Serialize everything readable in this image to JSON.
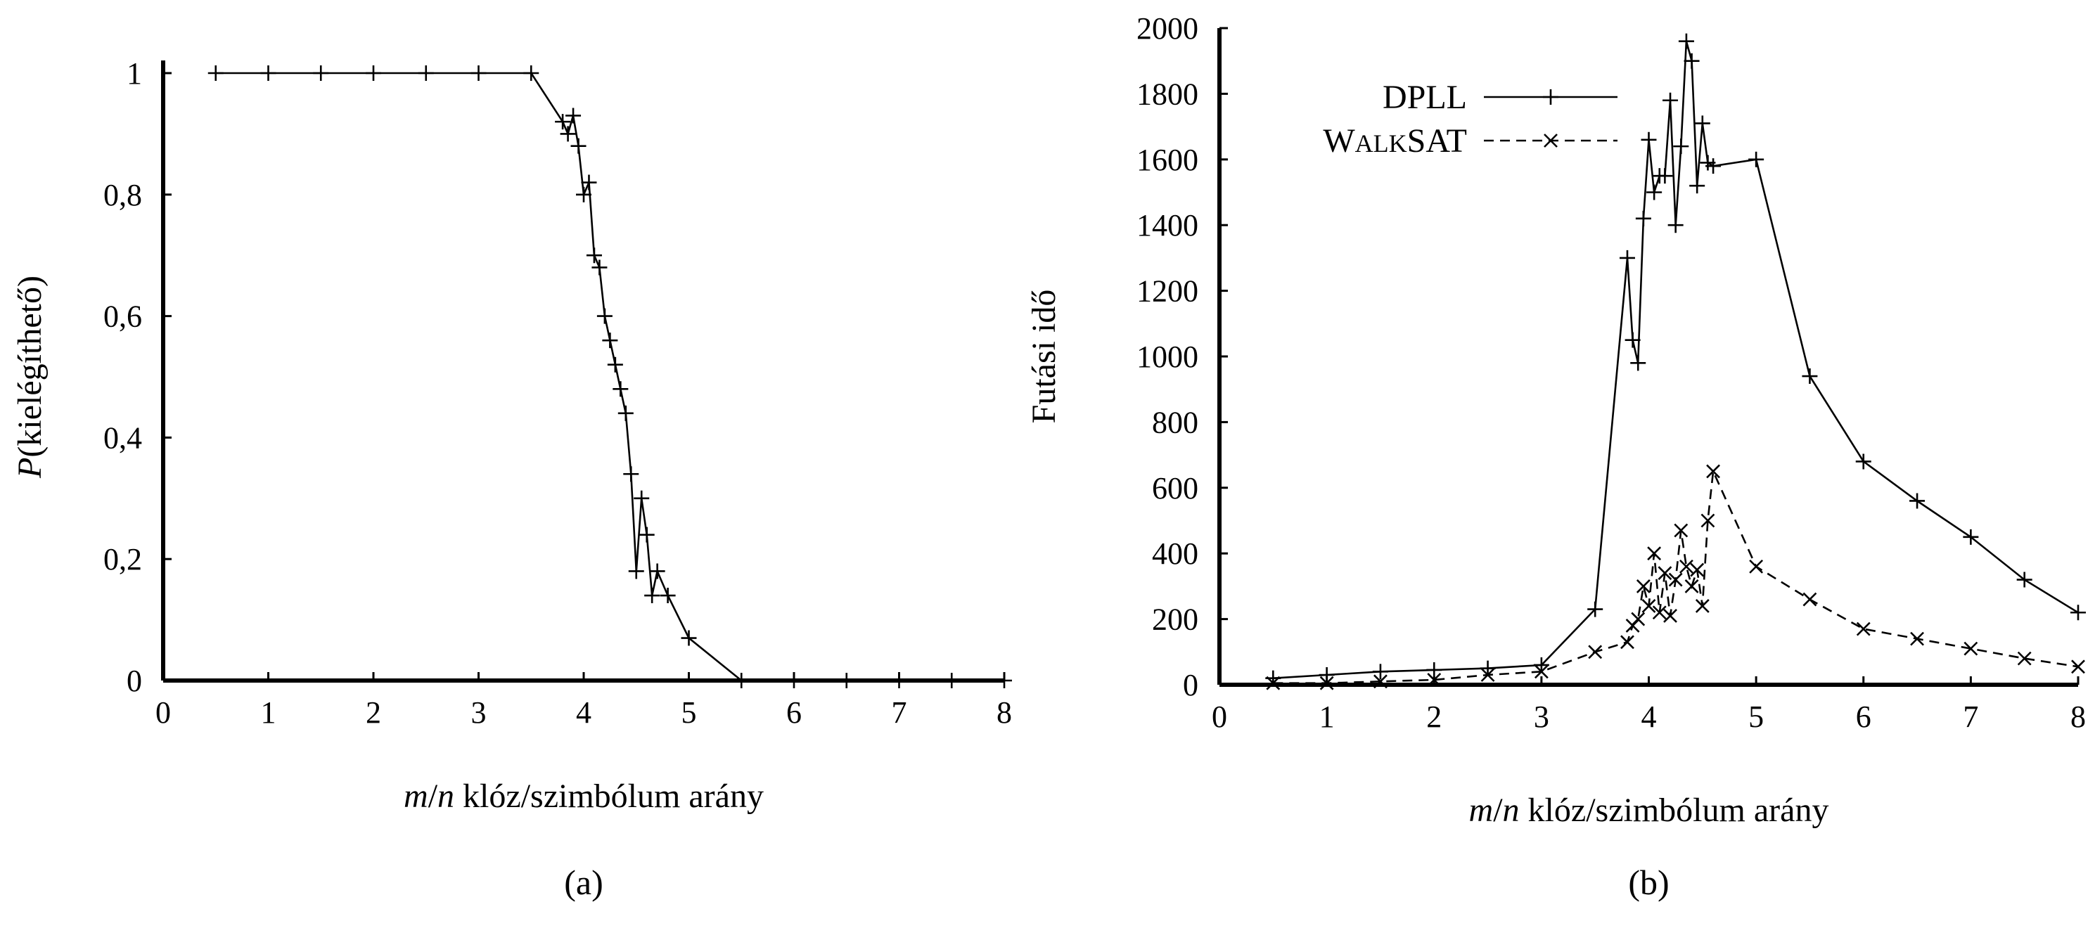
{
  "chart_data": [
    {
      "panel": "a",
      "type": "line",
      "caption": "(a)",
      "xlabel_italic": "m",
      "xlabel_sep": "/",
      "xlabel_italic2": "n",
      "xlabel_rest": " klóz/szimbólum arány",
      "ylabel_italic": "P",
      "ylabel_rest": "(kielégíthető)",
      "xlim": [
        0,
        8
      ],
      "ylim": [
        0,
        1
      ],
      "xticks": [
        "0",
        "1",
        "2",
        "3",
        "4",
        "5",
        "6",
        "7",
        "8"
      ],
      "yticks": [
        "0",
        "0,2",
        "0,4",
        "0,6",
        "0,8",
        "1"
      ],
      "reference_line_y": 0,
      "series": [
        {
          "marker": "plus",
          "line": "solid",
          "x": [
            0.5,
            1,
            1.5,
            2,
            2.5,
            3,
            3.5,
            3.8,
            3.85,
            3.9,
            3.95,
            4.0,
            4.05,
            4.1,
            4.15,
            4.2,
            4.25,
            4.3,
            4.35,
            4.4,
            4.45,
            4.5,
            4.55,
            4.6,
            4.65,
            4.7,
            4.8,
            5.0,
            5.5,
            6,
            6.5,
            7,
            7.5,
            8
          ],
          "y": [
            1,
            1,
            1,
            1,
            1,
            1,
            1,
            0.92,
            0.9,
            0.93,
            0.88,
            0.8,
            0.82,
            0.7,
            0.68,
            0.6,
            0.56,
            0.52,
            0.48,
            0.44,
            0.34,
            0.18,
            0.3,
            0.24,
            0.14,
            0.18,
            0.14,
            0.07,
            0,
            0,
            0,
            0,
            0,
            0
          ]
        }
      ]
    },
    {
      "panel": "b",
      "type": "line",
      "caption": "(b)",
      "xlabel_italic": "m",
      "xlabel_sep": "/",
      "xlabel_italic2": "n",
      "xlabel_rest": " klóz/szimbólum arány",
      "ylabel": "Futási idő",
      "xlim": [
        0,
        8
      ],
      "ylim": [
        0,
        2000
      ],
      "xticks": [
        "0",
        "1",
        "2",
        "3",
        "4",
        "5",
        "6",
        "7",
        "8"
      ],
      "yticks": [
        "0",
        "200",
        "400",
        "600",
        "800",
        "1000",
        "1200",
        "1400",
        "1600",
        "1800",
        "2000"
      ],
      "legend_position": "top-left",
      "series": [
        {
          "name": "DPLL",
          "marker": "plus",
          "line": "solid",
          "x": [
            0.5,
            1,
            1.5,
            2,
            2.5,
            3,
            3.5,
            3.8,
            3.85,
            3.9,
            3.95,
            4.0,
            4.05,
            4.1,
            4.15,
            4.2,
            4.25,
            4.3,
            4.35,
            4.4,
            4.45,
            4.5,
            4.55,
            4.6,
            5.0,
            5.5,
            6,
            6.5,
            7,
            7.5,
            8
          ],
          "y": [
            20,
            30,
            40,
            45,
            50,
            60,
            230,
            1300,
            1050,
            980,
            1420,
            1660,
            1500,
            1550,
            1550,
            1780,
            1400,
            1640,
            1960,
            1900,
            1520,
            1710,
            1590,
            1580,
            1600,
            940,
            680,
            560,
            450,
            320,
            220
          ]
        },
        {
          "name": "WALKSAT",
          "name_caps_initial": "W",
          "name_small": "ALK",
          "name_caps_mid": "SAT",
          "marker": "cross",
          "line": "dashed",
          "x": [
            0.5,
            1,
            1.5,
            2,
            2.5,
            3,
            3.5,
            3.8,
            3.85,
            3.9,
            3.95,
            4.0,
            4.05,
            4.1,
            4.15,
            4.2,
            4.25,
            4.3,
            4.35,
            4.4,
            4.45,
            4.5,
            4.55,
            4.6,
            5.0,
            5.5,
            6,
            6.5,
            7,
            7.5,
            8
          ],
          "y": [
            5,
            5,
            10,
            15,
            30,
            40,
            100,
            130,
            180,
            200,
            300,
            240,
            400,
            220,
            340,
            210,
            320,
            470,
            360,
            300,
            350,
            240,
            500,
            650,
            360,
            260,
            170,
            140,
            110,
            80,
            55
          ]
        }
      ]
    }
  ]
}
